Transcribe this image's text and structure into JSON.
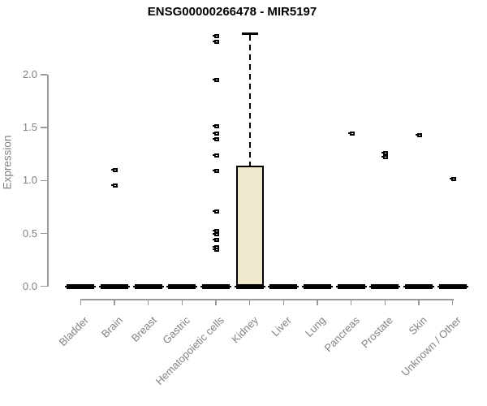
{
  "title": "ENSG00000266478 - MIR5197",
  "chart_data": {
    "type": "boxplot",
    "title": "ENSG00000266478 - MIR5197",
    "xlabel": "",
    "ylabel": "Expression",
    "ylim": [
      0.0,
      2.4
    ],
    "yticks": [
      0.0,
      0.5,
      1.0,
      1.5,
      2.0
    ],
    "ytick_labels": [
      "0.0",
      "0.5",
      "1.0",
      "1.5",
      "2.0"
    ],
    "grid": false,
    "legend": "none",
    "categories": [
      "Bladder",
      "Brain",
      "Breast",
      "Gastric",
      "Hematopoietic cells",
      "Kidney",
      "Liver",
      "Lung",
      "Pancreas",
      "Prostate",
      "Skin",
      "Unknown / Other"
    ],
    "boxes": [
      {
        "category": "Bladder",
        "q1": 0,
        "median": 0,
        "q3": 0,
        "whisker_low": 0,
        "whisker_high": 0,
        "outliers": []
      },
      {
        "category": "Brain",
        "q1": 0,
        "median": 0,
        "q3": 0,
        "whisker_low": 0,
        "whisker_high": 0,
        "outliers": [
          1.1,
          0.95
        ]
      },
      {
        "category": "Breast",
        "q1": 0,
        "median": 0,
        "q3": 0,
        "whisker_low": 0,
        "whisker_high": 0,
        "outliers": []
      },
      {
        "category": "Gastric",
        "q1": 0,
        "median": 0,
        "q3": 0,
        "whisker_low": 0,
        "whisker_high": 0,
        "outliers": []
      },
      {
        "category": "Hematopoietic cells",
        "q1": 0,
        "median": 0,
        "q3": 0,
        "whisker_low": 0,
        "whisker_high": 0,
        "outliers": [
          2.36,
          2.31,
          1.95,
          1.51,
          1.44,
          1.39,
          1.24,
          1.09,
          0.71,
          0.52,
          0.49,
          0.44,
          0.37,
          0.35
        ]
      },
      {
        "category": "Kidney",
        "q1": 0,
        "median": 0,
        "q3": 1.14,
        "whisker_low": 0,
        "whisker_high": 2.39,
        "outliers": []
      },
      {
        "category": "Liver",
        "q1": 0,
        "median": 0,
        "q3": 0,
        "whisker_low": 0,
        "whisker_high": 0,
        "outliers": []
      },
      {
        "category": "Lung",
        "q1": 0,
        "median": 0,
        "q3": 0,
        "whisker_low": 0,
        "whisker_high": 0,
        "outliers": []
      },
      {
        "category": "Pancreas",
        "q1": 0,
        "median": 0,
        "q3": 0,
        "whisker_low": 0,
        "whisker_high": 0,
        "outliers": [
          1.44
        ]
      },
      {
        "category": "Prostate",
        "q1": 0,
        "median": 0,
        "q3": 0,
        "whisker_low": 0,
        "whisker_high": 0,
        "outliers": [
          1.26,
          1.22
        ]
      },
      {
        "category": "Skin",
        "q1": 0,
        "median": 0,
        "q3": 0,
        "whisker_low": 0,
        "whisker_high": 0,
        "outliers": [
          1.43
        ]
      },
      {
        "category": "Unknown / Other",
        "q1": 0,
        "median": 0,
        "q3": 0,
        "whisker_low": 0,
        "whisker_high": 0,
        "outliers": [
          1.01
        ]
      }
    ],
    "colors": {
      "box_fill": "#EEE8CD",
      "box_stroke": "#000000",
      "point_color": "#000000",
      "axis_color": "#9b9b9b",
      "label_color": "#828282",
      "title_color": "#000000",
      "background": "#ffffff"
    }
  }
}
